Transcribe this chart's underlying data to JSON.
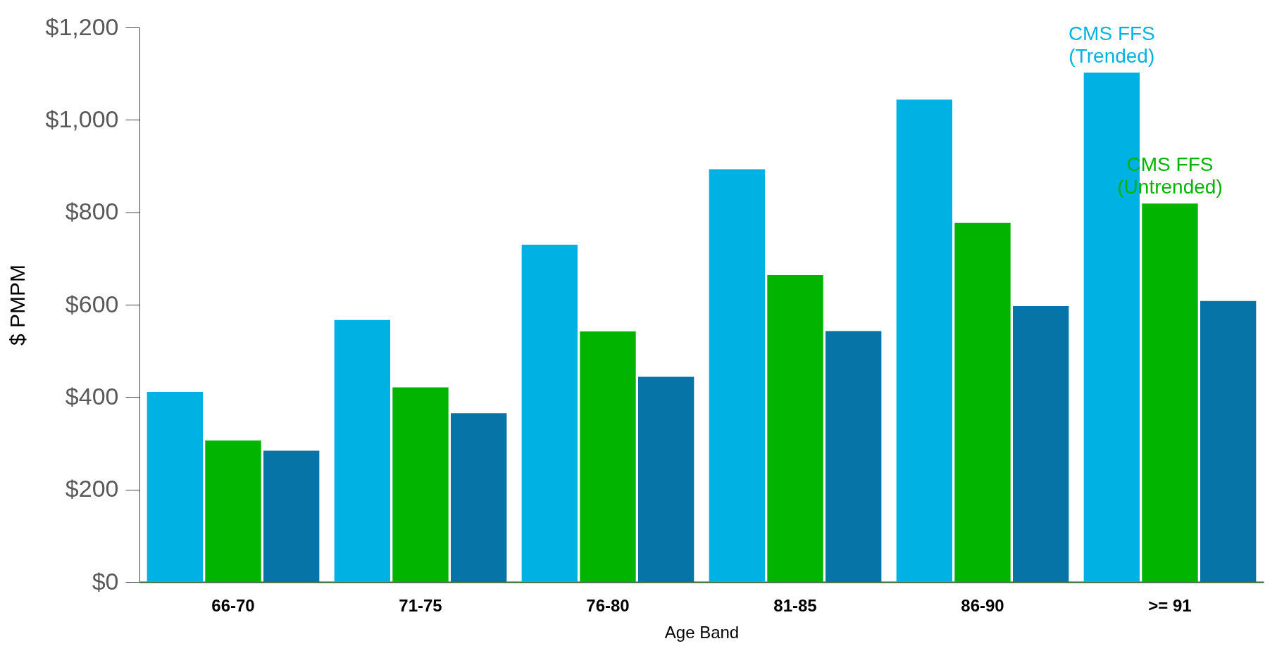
{
  "chart_data": {
    "type": "bar",
    "xlabel": "Age Band",
    "ylabel": "$ PMPM",
    "categories": [
      "66-70",
      "71-75",
      "76-80",
      "81-85",
      "86-90",
      ">= 91"
    ],
    "series": [
      {
        "name": "CMS FFS (Trended)",
        "color": "#00b2e3",
        "values": [
          411,
          567,
          730,
          893,
          1044,
          1102
        ]
      },
      {
        "name": "CMS FFS (Untrended)",
        "color": "#00b400",
        "values": [
          306,
          421,
          542,
          664,
          777,
          819
        ]
      },
      {
        "color": "#0774a8",
        "values": [
          284,
          365,
          444,
          543,
          597,
          608
        ]
      }
    ],
    "ylim": [
      0,
      1200
    ],
    "yticks": [
      {
        "value": 0,
        "label": "$0"
      },
      {
        "value": 200,
        "label": "$200"
      },
      {
        "value": 400,
        "label": "$400"
      },
      {
        "value": 600,
        "label": "$600"
      },
      {
        "value": 800,
        "label": "$800"
      },
      {
        "value": 1000,
        "label": "$1,000"
      },
      {
        "value": 1200,
        "label": "$1,200"
      }
    ],
    "grid": false,
    "legend": false
  }
}
